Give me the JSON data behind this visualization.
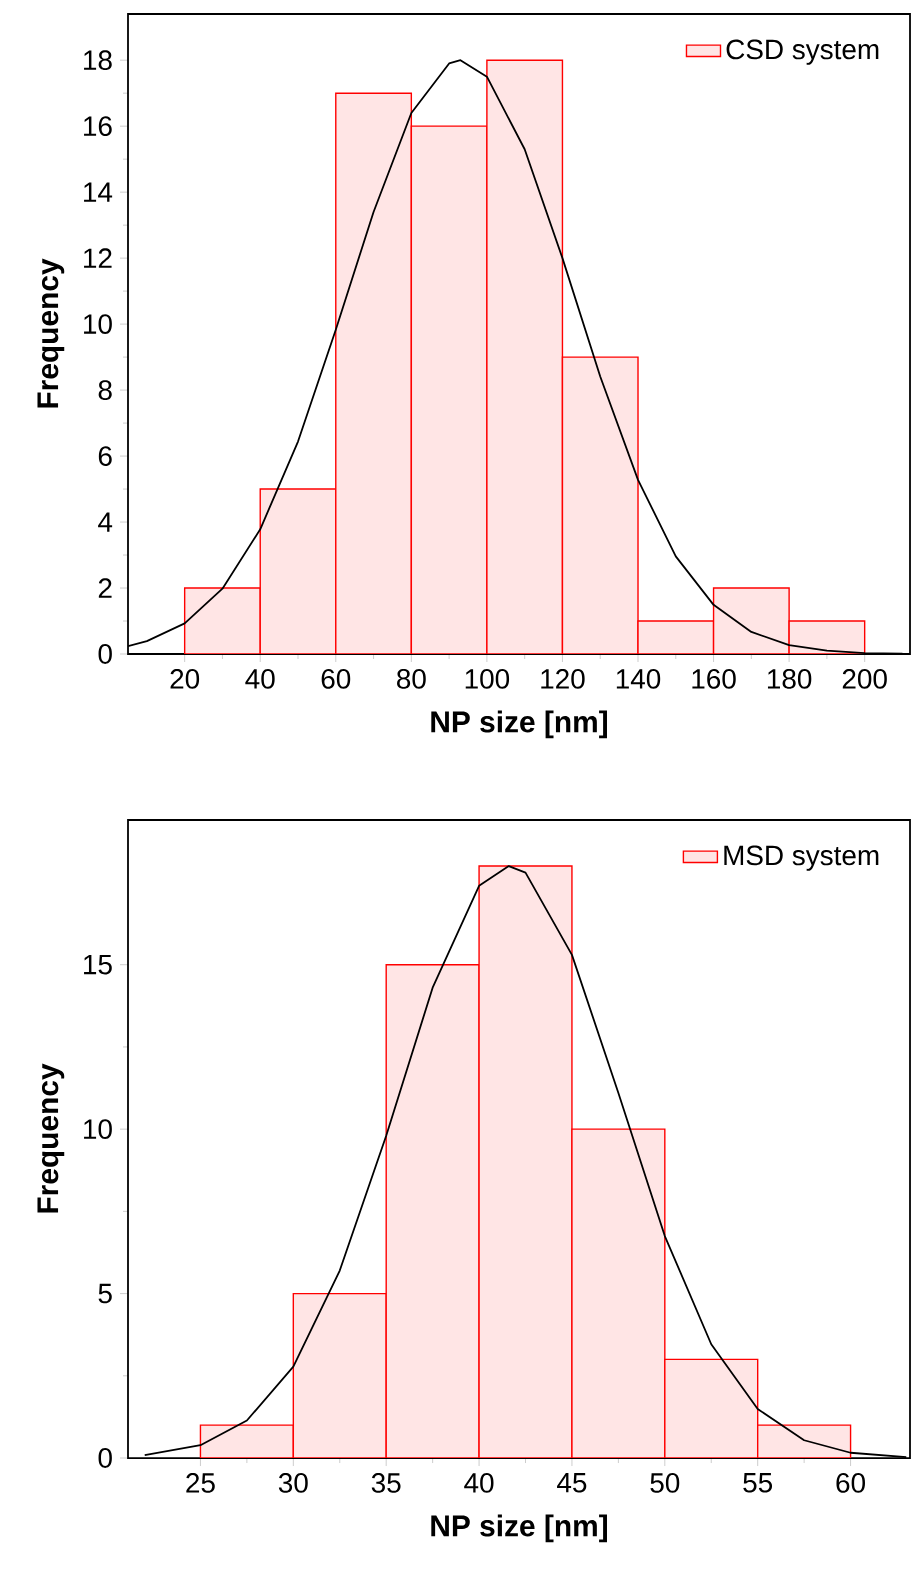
{
  "chart_data": [
    {
      "type": "histogram",
      "xlabel": "NP size [nm]",
      "ylabel": "Frequency",
      "bins": [
        20,
        40,
        60,
        80,
        100,
        120,
        140,
        160,
        180,
        200
      ],
      "xlim": [
        5,
        212
      ],
      "ylim": [
        0,
        19.4
      ],
      "xticks": [
        20,
        40,
        60,
        80,
        100,
        120,
        140,
        160,
        180,
        200
      ],
      "yticks": [
        0,
        2,
        4,
        6,
        8,
        10,
        12,
        14,
        16,
        18
      ],
      "legend": "top right",
      "series": [
        {
          "name": "CSD system",
          "color": "#ff0000",
          "values": [
            2,
            5,
            17,
            16,
            18,
            9,
            1,
            2,
            1
          ]
        },
        {
          "type": "line",
          "color": "#000000",
          "x": [
            5,
            10,
            20,
            30,
            40,
            50,
            60,
            70,
            80,
            90,
            93,
            100,
            110,
            120,
            130,
            140,
            150,
            160,
            170,
            180,
            190,
            200,
            210
          ],
          "values": [
            0.24,
            0.39,
            0.93,
            1.98,
            3.78,
            6.44,
            9.83,
            13.4,
            16.4,
            17.9,
            18,
            17.5,
            15.3,
            12.0,
            8.41,
            5.28,
            2.96,
            1.49,
            0.67,
            0.27,
            0.1,
            0.03,
            0.01
          ]
        }
      ]
    },
    {
      "type": "histogram",
      "xlabel": "NP size [nm]",
      "ylabel": "Frequency",
      "bins": [
        25,
        30,
        35,
        40,
        45,
        50,
        55,
        60
      ],
      "xlim": [
        21.1,
        63.2
      ],
      "ylim": [
        0,
        19.4
      ],
      "xticks": [
        25,
        30,
        35,
        40,
        45,
        50,
        55,
        60
      ],
      "yticks": [
        0,
        5,
        10,
        15
      ],
      "legend": "top right",
      "series": [
        {
          "name": "MSD system",
          "color": "#ff0000",
          "values": [
            1,
            5,
            15,
            18,
            10,
            3,
            1
          ]
        },
        {
          "type": "line",
          "color": "#000000",
          "x": [
            22,
            25,
            27.5,
            30,
            32.5,
            35,
            37.5,
            40,
            41.6,
            42.5,
            45,
            47.5,
            50,
            52.5,
            55,
            57.5,
            60,
            63
          ],
          "values": [
            0.09,
            0.39,
            1.14,
            2.78,
            5.7,
            9.8,
            14.3,
            17.4,
            18,
            17.8,
            15.3,
            11.1,
            6.75,
            3.46,
            1.49,
            0.54,
            0.16,
            0.03
          ]
        }
      ]
    }
  ]
}
